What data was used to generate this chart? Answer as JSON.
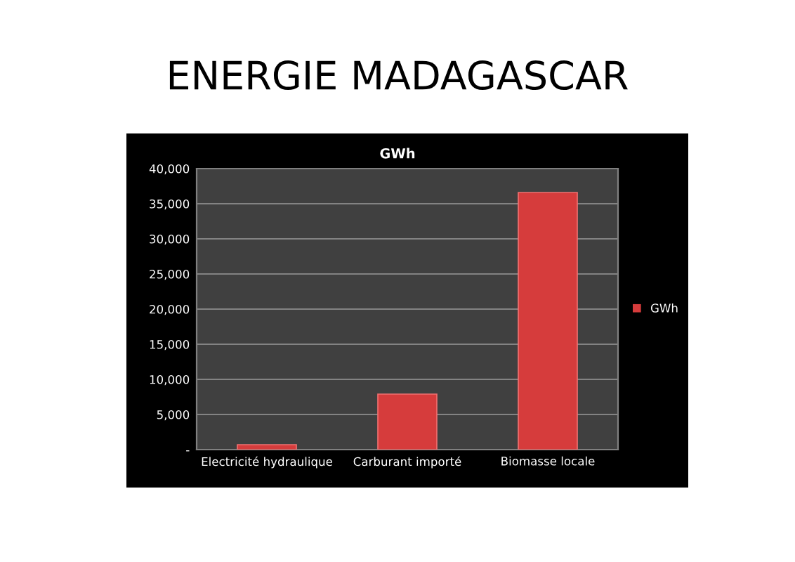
{
  "chart_data": {
    "type": "bar",
    "title": "ENERGIE MADAGASCAR",
    "subtitle": "GWh",
    "categories": [
      "Electricité hydraulique",
      "Carburant importé",
      "Biomasse locale"
    ],
    "series": [
      {
        "name": "GWh",
        "color": "#d63c3c",
        "values": [
          700,
          7900,
          36600
        ]
      }
    ],
    "ylim": [
      0,
      40000
    ],
    "yticks": [
      {
        "value": 0,
        "label": "-"
      },
      {
        "value": 5000,
        "label": "5,000"
      },
      {
        "value": 10000,
        "label": "10,000"
      },
      {
        "value": 15000,
        "label": "15,000"
      },
      {
        "value": 20000,
        "label": "20,000"
      },
      {
        "value": 25000,
        "label": "25,000"
      },
      {
        "value": 30000,
        "label": "30,000"
      },
      {
        "value": 35000,
        "label": "35,000"
      },
      {
        "value": 40000,
        "label": "40,000"
      }
    ],
    "grid": "y",
    "legend": "right"
  }
}
